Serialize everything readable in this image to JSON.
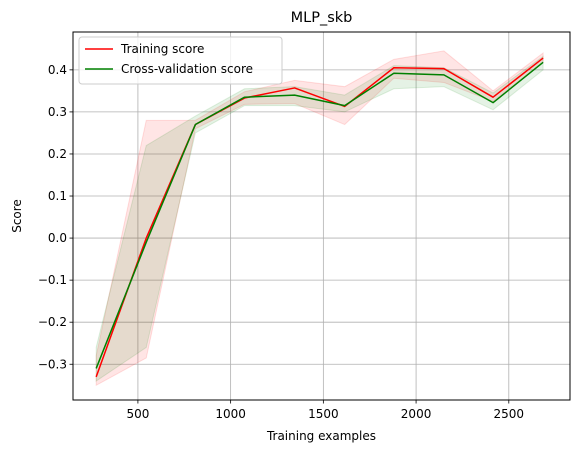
{
  "chart_data": {
    "type": "line",
    "title": "MLP_skb",
    "xlabel": "Training examples",
    "ylabel": "Score",
    "xlim": [
      150,
      2830
    ],
    "ylim": [
      -0.385,
      0.49
    ],
    "xticks": [
      500,
      1000,
      1500,
      2000,
      2500
    ],
    "yticks": [
      -0.3,
      -0.2,
      -0.1,
      0.0,
      0.1,
      0.2,
      0.3,
      0.4
    ],
    "ytick_labels": [
      "−0.3",
      "−0.2",
      "−0.1",
      "0.0",
      "0.1",
      "0.2",
      "0.3",
      "0.4"
    ],
    "grid": true,
    "legend": {
      "placement": "top-left"
    },
    "x": [
      275,
      545,
      810,
      1075,
      1345,
      1615,
      1880,
      2150,
      2415,
      2685
    ],
    "series": [
      {
        "name": "Training score",
        "color": "#ff0000",
        "values": [
          -0.33,
          0.0,
          0.27,
          0.333,
          0.357,
          0.313,
          0.405,
          0.403,
          0.335,
          0.428
        ],
        "upper": [
          -0.28,
          0.28,
          0.28,
          0.348,
          0.375,
          0.36,
          0.425,
          0.445,
          0.35,
          0.44
        ],
        "lower": [
          -0.35,
          -0.285,
          0.26,
          0.318,
          0.32,
          0.27,
          0.38,
          0.37,
          0.325,
          0.418
        ]
      },
      {
        "name": "Cross-validation score",
        "color": "#008000",
        "values": [
          -0.31,
          -0.01,
          0.27,
          0.335,
          0.34,
          0.315,
          0.392,
          0.388,
          0.322,
          0.418
        ],
        "upper": [
          -0.26,
          0.22,
          0.29,
          0.355,
          0.36,
          0.34,
          0.41,
          0.405,
          0.345,
          0.432
        ],
        "lower": [
          -0.34,
          -0.26,
          0.25,
          0.315,
          0.315,
          0.3,
          0.355,
          0.36,
          0.305,
          0.4
        ]
      }
    ]
  }
}
